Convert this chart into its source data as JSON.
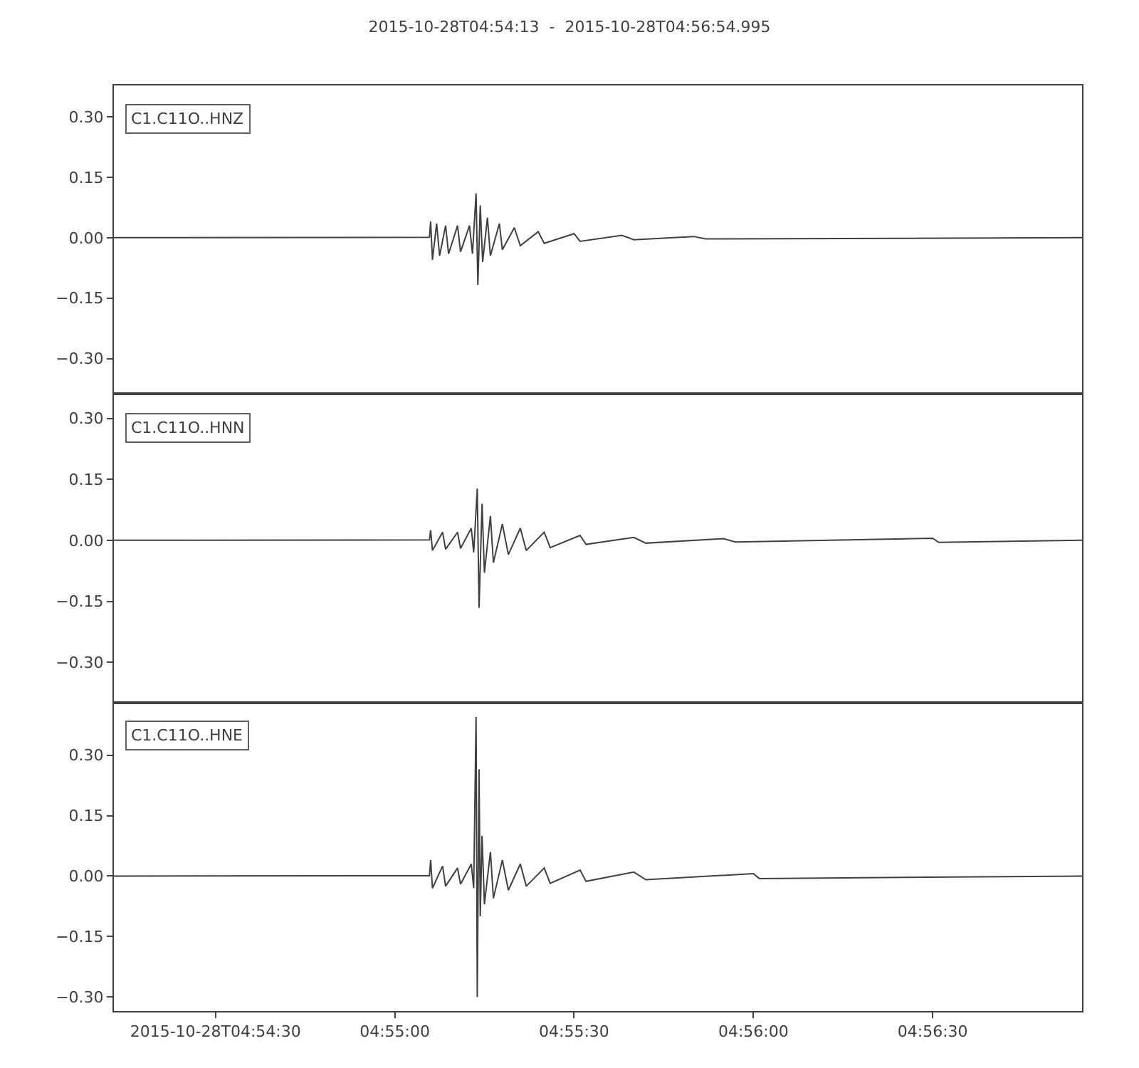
{
  "chart_data": [
    {
      "type": "line",
      "title": "2015-10-28T04:54:13  -  2015-10-28T04:56:54.995",
      "annotations": [
        "C1.C11O..HNZ"
      ],
      "tick_labels": "y",
      "grid": false,
      "marker": "none",
      "line_style": "solid",
      "xlim": [
        "2015-10-28T04:54:13",
        "2015-10-28T04:56:54.995"
      ],
      "ylim": [
        -0.388,
        0.378
      ],
      "yticks": [
        {
          "value": 0.3,
          "label": "0.30"
        },
        {
          "value": 0.15,
          "label": "0.15"
        },
        {
          "value": 0,
          "label": "0.00"
        },
        {
          "value": -0.15,
          "label": "−0.15"
        },
        {
          "value": -0.3,
          "label": "−0.30"
        }
      ],
      "series": [
        {
          "color": "#404040",
          "x": [
            "2015-10-28T04:54:13",
            "2015-10-28T04:55:05.8",
            "2015-10-28T04:55:06",
            "2015-10-28T04:55:06.3",
            "2015-10-28T04:55:07",
            "2015-10-28T04:55:07.5",
            "2015-10-28T04:55:08.5",
            "2015-10-28T04:55:09",
            "2015-10-28T04:55:10.5",
            "2015-10-28T04:55:11",
            "2015-10-28T04:55:12.5",
            "2015-10-28T04:55:13",
            "2015-10-28T04:55:13.6",
            "2015-10-28T04:55:13.9",
            "2015-10-28T04:55:14.3",
            "2015-10-28T04:55:14.7",
            "2015-10-28T04:55:15.5",
            "2015-10-28T04:55:16",
            "2015-10-28T04:55:17.5",
            "2015-10-28T04:55:18",
            "2015-10-28T04:55:20",
            "2015-10-28T04:55:21",
            "2015-10-28T04:55:24",
            "2015-10-28T04:55:25",
            "2015-10-28T04:55:30",
            "2015-10-28T04:55:31",
            "2015-10-28T04:55:38",
            "2015-10-28T04:55:40",
            "2015-10-28T04:55:50",
            "2015-10-28T04:55:52",
            "2015-10-28T04:56:54.995"
          ],
          "values": [
            0,
            0.001,
            0.04,
            -0.055,
            0.035,
            -0.045,
            0.03,
            -0.04,
            0.03,
            -0.035,
            0.03,
            -0.04,
            0.11,
            -0.117,
            0.08,
            -0.06,
            0.05,
            -0.045,
            0.035,
            -0.03,
            0.025,
            -0.02,
            0.015,
            -0.014,
            0.01,
            -0.009,
            0.006,
            -0.005,
            0.003,
            -0.003,
            0
          ]
        }
      ]
    },
    {
      "type": "line",
      "annotations": [
        "C1.C11O..HNN"
      ],
      "tick_labels": "y",
      "grid": false,
      "marker": "none",
      "line_style": "solid",
      "xlim": [
        "2015-10-28T04:54:13",
        "2015-10-28T04:56:54.995"
      ],
      "ylim": [
        -0.399,
        0.36
      ],
      "yticks": [
        {
          "value": 0.3,
          "label": "0.30"
        },
        {
          "value": 0.15,
          "label": "0.15"
        },
        {
          "value": 0,
          "label": "0.00"
        },
        {
          "value": -0.15,
          "label": "−0.15"
        },
        {
          "value": -0.3,
          "label": "−0.30"
        }
      ],
      "series": [
        {
          "color": "#404040",
          "x": [
            "2015-10-28T04:54:13",
            "2015-10-28T04:55:05.8",
            "2015-10-28T04:55:06",
            "2015-10-28T04:55:06.3",
            "2015-10-28T04:55:08",
            "2015-10-28T04:55:08.5",
            "2015-10-28T04:55:10.5",
            "2015-10-28T04:55:11",
            "2015-10-28T04:55:12.8",
            "2015-10-28T04:55:13.2",
            "2015-10-28T04:55:13.8",
            "2015-10-28T04:55:14.1",
            "2015-10-28T04:55:14.6",
            "2015-10-28T04:55:15",
            "2015-10-28T04:55:16",
            "2015-10-28T04:55:16.5",
            "2015-10-28T04:55:18",
            "2015-10-28T04:55:19",
            "2015-10-28T04:55:21",
            "2015-10-28T04:55:22",
            "2015-10-28T04:55:25",
            "2015-10-28T04:55:26",
            "2015-10-28T04:55:31",
            "2015-10-28T04:55:32",
            "2015-10-28T04:55:40",
            "2015-10-28T04:55:42",
            "2015-10-28T04:55:55",
            "2015-10-28T04:55:57",
            "2015-10-28T04:56:30",
            "2015-10-28T04:56:31",
            "2015-10-28T04:56:54.995"
          ],
          "values": [
            0,
            0.001,
            0.025,
            -0.025,
            0.02,
            -0.022,
            0.02,
            -0.02,
            0.03,
            -0.03,
            0.127,
            -0.166,
            0.09,
            -0.08,
            0.06,
            -0.055,
            0.04,
            -0.035,
            0.03,
            -0.025,
            0.02,
            -0.018,
            0.012,
            -0.01,
            0.007,
            -0.007,
            0.004,
            -0.004,
            0.005,
            -0.005,
            0
          ]
        }
      ]
    },
    {
      "type": "line",
      "annotations": [
        "C1.C11O..HNE"
      ],
      "grid": false,
      "marker": "none",
      "line_style": "solid",
      "xlim": [
        "2015-10-28T04:54:13",
        "2015-10-28T04:56:54.995"
      ],
      "xticks": [
        {
          "value": "2015-10-28T04:54:30",
          "label": "2015-10-28T04:54:30"
        },
        {
          "value": "2015-10-28T04:55:00",
          "label": "04:55:00"
        },
        {
          "value": "2015-10-28T04:55:30",
          "label": "04:55:30"
        },
        {
          "value": "2015-10-28T04:56:00",
          "label": "04:56:00"
        },
        {
          "value": "2015-10-28T04:56:30",
          "label": "04:56:30"
        }
      ],
      "ylim": [
        -0.335,
        0.431
      ],
      "yticks": [
        {
          "value": 0.3,
          "label": "0.30"
        },
        {
          "value": 0.15,
          "label": "0.15"
        },
        {
          "value": 0,
          "label": "0.00"
        },
        {
          "value": -0.15,
          "label": "−0.15"
        },
        {
          "value": -0.3,
          "label": "−0.30"
        }
      ],
      "series": [
        {
          "color": "#404040",
          "x": [
            "2015-10-28T04:54:13",
            "2015-10-28T04:55:05.8",
            "2015-10-28T04:55:06",
            "2015-10-28T04:55:06.3",
            "2015-10-28T04:55:08",
            "2015-10-28T04:55:08.5",
            "2015-10-28T04:55:10.5",
            "2015-10-28T04:55:11",
            "2015-10-28T04:55:12.8",
            "2015-10-28T04:55:13.2",
            "2015-10-28T04:55:13.6",
            "2015-10-28T04:55:13.8",
            "2015-10-28T04:55:14.1",
            "2015-10-28T04:55:14.3",
            "2015-10-28T04:55:14.6",
            "2015-10-28T04:55:15",
            "2015-10-28T04:55:16",
            "2015-10-28T04:55:16.5",
            "2015-10-28T04:55:18",
            "2015-10-28T04:55:19",
            "2015-10-28T04:55:21",
            "2015-10-28T04:55:22",
            "2015-10-28T04:55:25",
            "2015-10-28T04:55:26",
            "2015-10-28T04:55:31",
            "2015-10-28T04:55:32",
            "2015-10-28T04:55:40",
            "2015-10-28T04:55:42",
            "2015-10-28T04:56:00",
            "2015-10-28T04:56:01",
            "2015-10-28T04:56:54.995"
          ],
          "values": [
            0,
            0.001,
            0.04,
            -0.03,
            0.025,
            -0.025,
            0.02,
            -0.02,
            0.03,
            -0.03,
            0.395,
            -0.3,
            0.265,
            -0.1,
            0.1,
            -0.07,
            0.06,
            -0.055,
            0.04,
            -0.035,
            0.03,
            -0.025,
            0.02,
            -0.018,
            0.015,
            -0.013,
            0.01,
            -0.009,
            0.006,
            -0.006,
            0
          ]
        }
      ]
    }
  ]
}
